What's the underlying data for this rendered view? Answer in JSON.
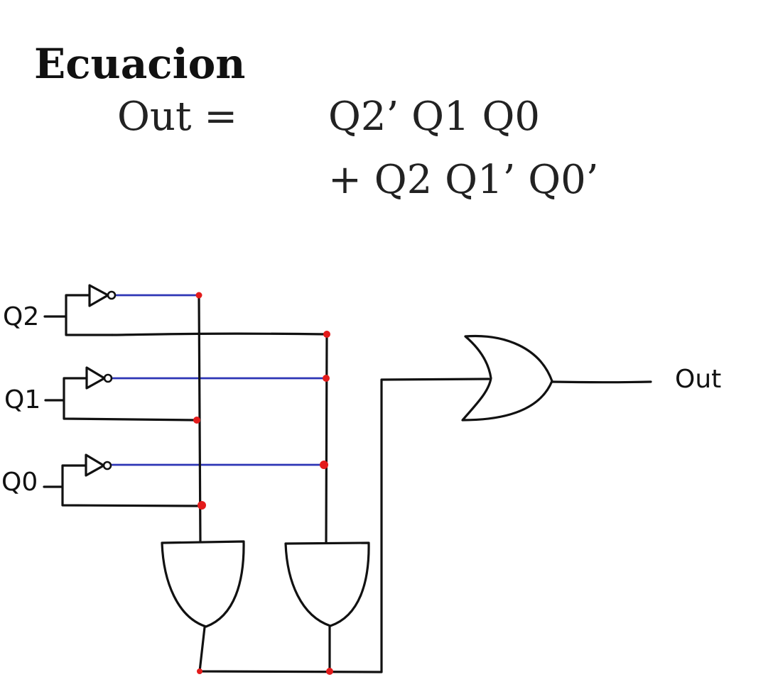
{
  "equation": {
    "title": "Ecuacion",
    "lhs": "Out =",
    "term1": "Q2’ Q1 Q0",
    "term2": "+ Q2 Q1’ Q0’"
  },
  "circuit": {
    "inputs": [
      "Q2",
      "Q1",
      "Q0"
    ],
    "output": "Out",
    "gates": [
      "not",
      "not",
      "not",
      "and",
      "and",
      "or"
    ],
    "colors": {
      "wire": "#111111",
      "inverted_wire": "#2d35b5",
      "junction": "#e31b1b"
    }
  }
}
